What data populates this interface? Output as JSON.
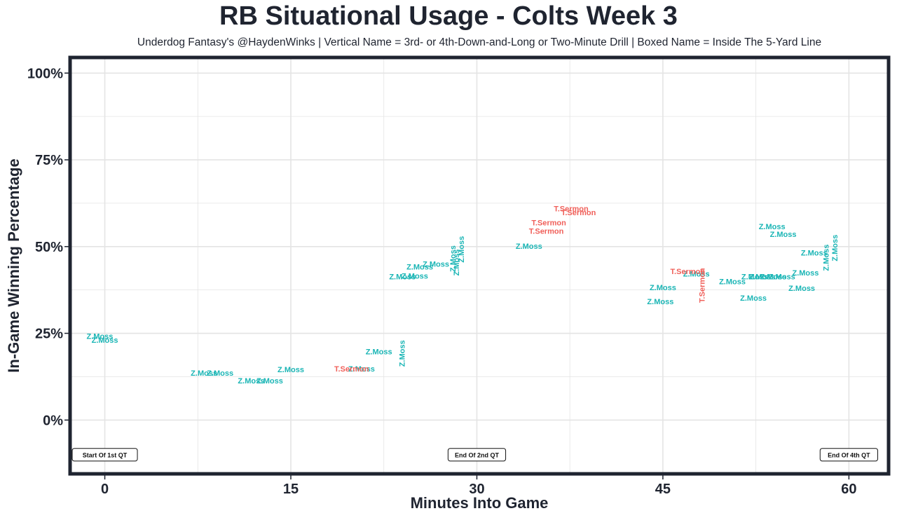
{
  "title": "RB Situational Usage - Colts Week 3",
  "subtitle": "Underdog Fantasy's @HaydenWinks | Vertical Name = 3rd- or 4th-Down-and-Long or Two-Minute Drill | Boxed Name = Inside The 5-Yard Line",
  "colors": {
    "Z.Moss": "#1ab5b5",
    "T.Sermon": "#f0605a",
    "frame": "#1f2430",
    "grid": "#e4e4e4"
  },
  "chart_data": {
    "type": "scatter",
    "title": "RB Situational Usage - Colts Week 3",
    "xlabel": "Minutes Into Game",
    "ylabel": "In-Game Winning Percentage",
    "xlim": [
      -2.8,
      63.2
    ],
    "ylim": [
      -15.5,
      104.5
    ],
    "x_ticks": [
      0,
      15,
      30,
      45,
      60
    ],
    "x_tick_labels": [
      "0",
      "15",
      "30",
      "45",
      "60"
    ],
    "y_ticks": [
      0,
      25,
      50,
      75,
      100
    ],
    "y_tick_labels": [
      "0%",
      "25%",
      "50%",
      "75%",
      "100%"
    ],
    "grid": true,
    "quarter_labels": [
      {
        "x": 0,
        "y": -10,
        "label": "Start Of 1st QT"
      },
      {
        "x": 30,
        "y": -10,
        "label": "End Of 2nd QT"
      },
      {
        "x": 60,
        "y": -10,
        "label": "End Of 4th QT"
      }
    ],
    "series": [
      {
        "name": "Z.Moss",
        "points": [
          {
            "x": -0.4,
            "y": 24.0,
            "vertical": false,
            "label": "Z.Moss"
          },
          {
            "x": 0.0,
            "y": 22.9,
            "vertical": false,
            "label": "Z.Moss"
          },
          {
            "x": 8.0,
            "y": 13.4,
            "vertical": false,
            "label": "Z.Moss"
          },
          {
            "x": 9.3,
            "y": 13.4,
            "vertical": false,
            "label": "Z.Moss"
          },
          {
            "x": 11.8,
            "y": 11.2,
            "vertical": false,
            "label": "Z.Moss"
          },
          {
            "x": 13.3,
            "y": 11.2,
            "vertical": false,
            "label": "Z.Moss"
          },
          {
            "x": 15.0,
            "y": 14.4,
            "vertical": false,
            "label": "Z.Moss"
          },
          {
            "x": 20.7,
            "y": 14.6,
            "vertical": false,
            "label": "Z.Moss"
          },
          {
            "x": 22.1,
            "y": 19.6,
            "vertical": false,
            "label": "Z.Moss"
          },
          {
            "x": 24.0,
            "y": 19.2,
            "vertical": true,
            "label": "Z.Moss"
          },
          {
            "x": 24.0,
            "y": 41.2,
            "vertical": false,
            "label": "Z.Moss"
          },
          {
            "x": 25.0,
            "y": 41.4,
            "vertical": false,
            "label": "Z.Moss"
          },
          {
            "x": 25.4,
            "y": 44.0,
            "vertical": false,
            "label": "Z.Moss"
          },
          {
            "x": 26.7,
            "y": 44.8,
            "vertical": false,
            "label": "Z.Moss"
          },
          {
            "x": 28.1,
            "y": 46.5,
            "vertical": true,
            "label": "Z.Moss"
          },
          {
            "x": 28.4,
            "y": 45.4,
            "vertical": true,
            "label": "Z.Moss"
          },
          {
            "x": 28.8,
            "y": 49.2,
            "vertical": true,
            "label": "Z.Moss"
          },
          {
            "x": 34.2,
            "y": 50.0,
            "vertical": false,
            "label": "Z.Moss"
          },
          {
            "x": 45.0,
            "y": 38.0,
            "vertical": false,
            "label": "Z.Moss"
          },
          {
            "x": 44.8,
            "y": 34.0,
            "vertical": false,
            "label": "Z.Moss"
          },
          {
            "x": 47.7,
            "y": 42.0,
            "vertical": false,
            "label": "Z.Moss"
          },
          {
            "x": 50.6,
            "y": 39.8,
            "vertical": false,
            "label": "Z.Moss"
          },
          {
            "x": 52.3,
            "y": 35.0,
            "vertical": false,
            "label": "Z.Moss"
          },
          {
            "x": 52.4,
            "y": 41.2,
            "vertical": false,
            "label": "Z.Moss"
          },
          {
            "x": 53.0,
            "y": 41.2,
            "vertical": false,
            "label": "Z.Moss"
          },
          {
            "x": 53.9,
            "y": 41.2,
            "vertical": false,
            "label": "Z.Moss"
          },
          {
            "x": 54.6,
            "y": 41.2,
            "vertical": false,
            "label": "Z.Moss"
          },
          {
            "x": 53.8,
            "y": 55.6,
            "vertical": false,
            "label": "Z.Moss"
          },
          {
            "x": 54.7,
            "y": 53.4,
            "vertical": false,
            "label": "Z.Moss"
          },
          {
            "x": 56.2,
            "y": 37.8,
            "vertical": false,
            "label": "Z.Moss"
          },
          {
            "x": 56.5,
            "y": 42.3,
            "vertical": false,
            "label": "Z.Moss"
          },
          {
            "x": 57.2,
            "y": 48.0,
            "vertical": false,
            "label": "Z.Moss"
          },
          {
            "x": 58.2,
            "y": 46.8,
            "vertical": true,
            "label": "Z.Moss"
          },
          {
            "x": 58.9,
            "y": 49.6,
            "vertical": true,
            "label": "Z.Moss"
          }
        ]
      },
      {
        "name": "T.Sermon",
        "points": [
          {
            "x": 19.9,
            "y": 14.6,
            "vertical": false,
            "label": "T.Sermon"
          },
          {
            "x": 35.6,
            "y": 54.3,
            "vertical": false,
            "label": "T.Sermon"
          },
          {
            "x": 35.8,
            "y": 56.7,
            "vertical": false,
            "label": "T.Sermon"
          },
          {
            "x": 37.6,
            "y": 60.8,
            "vertical": false,
            "label": "T.Sermon"
          },
          {
            "x": 38.2,
            "y": 59.7,
            "vertical": false,
            "label": "T.Sermon"
          },
          {
            "x": 47.0,
            "y": 42.7,
            "vertical": false,
            "label": "T.Sermon"
          },
          {
            "x": 48.2,
            "y": 38.8,
            "vertical": true,
            "label": "T.Sermon"
          }
        ]
      }
    ]
  }
}
